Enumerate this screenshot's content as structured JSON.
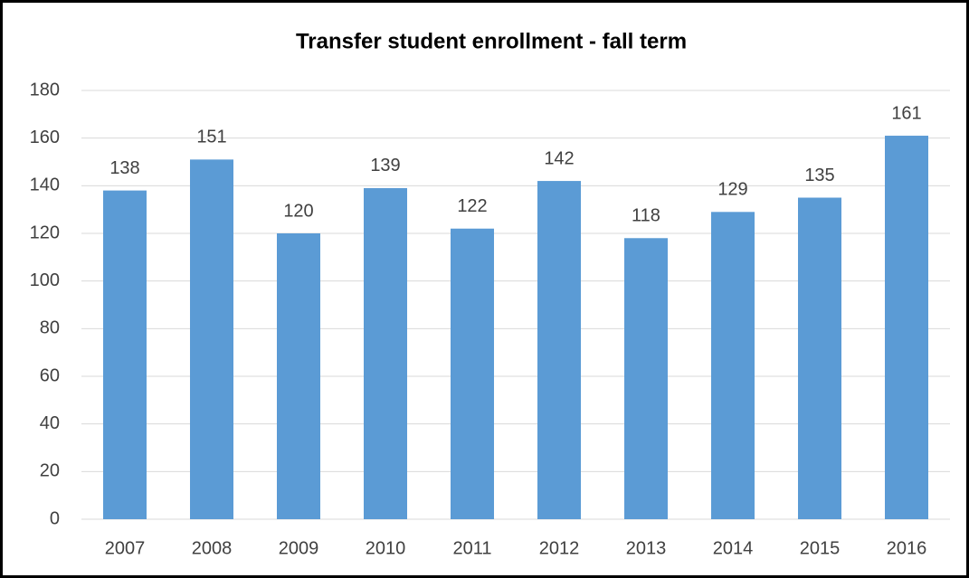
{
  "chart_data": {
    "type": "bar",
    "title": "Transfer student enrollment - fall term",
    "categories": [
      "2007",
      "2008",
      "2009",
      "2010",
      "2011",
      "2012",
      "2013",
      "2014",
      "2015",
      "2016"
    ],
    "values": [
      138,
      151,
      120,
      139,
      122,
      142,
      118,
      129,
      135,
      161
    ],
    "color": "#5b9bd5",
    "ylim": [
      0,
      180
    ],
    "yticks": [
      0,
      20,
      40,
      60,
      80,
      100,
      120,
      140,
      160,
      180
    ],
    "grid": true,
    "data_labels": true
  }
}
